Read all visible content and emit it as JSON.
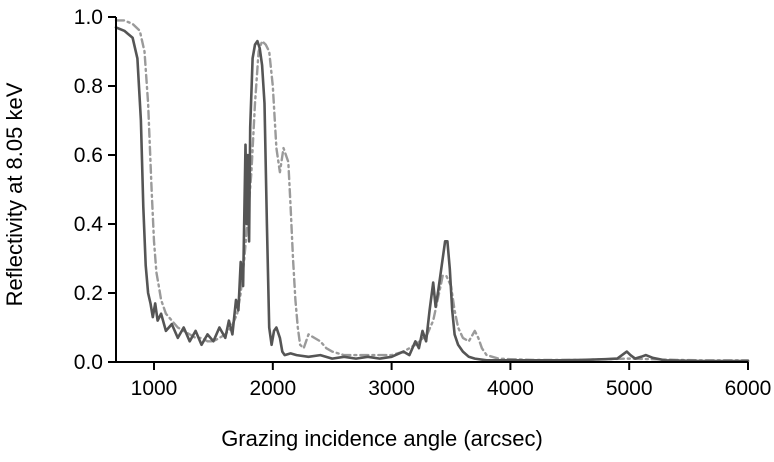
{
  "chart_data": {
    "type": "line",
    "title": "",
    "xlabel": "Grazing incidence angle (arcsec)",
    "ylabel": "Reflectivity at 8.05 keV",
    "xlim": [
      680,
      6000
    ],
    "ylim": [
      0,
      1.0
    ],
    "x_ticks": [
      1000,
      2000,
      3000,
      4000,
      5000,
      6000
    ],
    "x_tick_labels": [
      "1000",
      "2000",
      "3000",
      "4000",
      "5000",
      "6000"
    ],
    "y_ticks": [
      0.0,
      0.2,
      0.4,
      0.6,
      0.8,
      1.0
    ],
    "y_tick_labels": [
      "0.0",
      "0.2",
      "0.4",
      "0.6",
      "0.8",
      "1.0"
    ],
    "grid": false,
    "legend": "none",
    "series": [
      {
        "style": "solid",
        "color": "#555555",
        "x": [
          680,
          750,
          820,
          860,
          890,
          910,
          930,
          950,
          970,
          990,
          1010,
          1030,
          1060,
          1100,
          1150,
          1200,
          1250,
          1300,
          1350,
          1400,
          1450,
          1500,
          1550,
          1600,
          1630,
          1660,
          1690,
          1710,
          1730,
          1750,
          1770,
          1780,
          1790,
          1800,
          1810,
          1830,
          1850,
          1870,
          1890,
          1910,
          1930,
          1950,
          1970,
          1990,
          2010,
          2030,
          2060,
          2080,
          2100,
          2150,
          2200,
          2300,
          2400,
          2500,
          2600,
          2700,
          2800,
          2900,
          3000,
          3100,
          3150,
          3200,
          3230,
          3260,
          3290,
          3320,
          3350,
          3370,
          3390,
          3410,
          3430,
          3450,
          3470,
          3490,
          3510,
          3530,
          3560,
          3600,
          3650,
          3700,
          3800,
          3900,
          4000,
          4200,
          4400,
          4600,
          4800,
          4900,
          4980,
          5010,
          5050,
          5100,
          5140,
          5200,
          5300,
          5400,
          5600,
          5800,
          6000
        ],
        "y": [
          0.97,
          0.96,
          0.94,
          0.88,
          0.7,
          0.45,
          0.28,
          0.2,
          0.17,
          0.13,
          0.17,
          0.12,
          0.14,
          0.09,
          0.11,
          0.07,
          0.1,
          0.06,
          0.09,
          0.05,
          0.08,
          0.06,
          0.1,
          0.07,
          0.12,
          0.08,
          0.18,
          0.15,
          0.29,
          0.22,
          0.63,
          0.4,
          0.6,
          0.35,
          0.68,
          0.88,
          0.92,
          0.93,
          0.91,
          0.86,
          0.75,
          0.4,
          0.1,
          0.05,
          0.09,
          0.1,
          0.07,
          0.03,
          0.02,
          0.025,
          0.02,
          0.015,
          0.02,
          0.01,
          0.015,
          0.01,
          0.015,
          0.01,
          0.015,
          0.03,
          0.02,
          0.06,
          0.04,
          0.09,
          0.06,
          0.15,
          0.23,
          0.16,
          0.2,
          0.25,
          0.3,
          0.35,
          0.35,
          0.27,
          0.15,
          0.08,
          0.05,
          0.03,
          0.015,
          0.01,
          0.005,
          0.005,
          0.005,
          0.005,
          0.005,
          0.006,
          0.008,
          0.01,
          0.03,
          0.02,
          0.01,
          0.015,
          0.02,
          0.012,
          0.005,
          0.004,
          0.003,
          0.003,
          0.003
        ]
      },
      {
        "style": "dash-dot",
        "color": "#9a9a9a",
        "x": [
          680,
          750,
          820,
          880,
          920,
          950,
          980,
          1000,
          1020,
          1040,
          1060,
          1100,
          1150,
          1200,
          1250,
          1300,
          1350,
          1400,
          1450,
          1500,
          1550,
          1600,
          1650,
          1700,
          1730,
          1760,
          1790,
          1820,
          1850,
          1880,
          1910,
          1940,
          1970,
          2000,
          2030,
          2060,
          2090,
          2110,
          2130,
          2150,
          2170,
          2190,
          2210,
          2230,
          2260,
          2300,
          2350,
          2400,
          2450,
          2500,
          2600,
          2700,
          2800,
          2900,
          3000,
          3100,
          3200,
          3300,
          3350,
          3400,
          3430,
          3460,
          3500,
          3530,
          3560,
          3600,
          3650,
          3700,
          3730,
          3760,
          3800,
          3900,
          4000,
          4200,
          4400,
          4600,
          4800,
          5000,
          5200,
          5400,
          5600,
          5800,
          6000
        ],
        "y": [
          0.99,
          0.99,
          0.98,
          0.96,
          0.9,
          0.75,
          0.5,
          0.35,
          0.26,
          0.22,
          0.18,
          0.14,
          0.12,
          0.1,
          0.09,
          0.08,
          0.07,
          0.07,
          0.06,
          0.06,
          0.07,
          0.08,
          0.1,
          0.14,
          0.2,
          0.3,
          0.42,
          0.55,
          0.75,
          0.9,
          0.93,
          0.92,
          0.9,
          0.8,
          0.62,
          0.55,
          0.62,
          0.6,
          0.58,
          0.45,
          0.3,
          0.18,
          0.1,
          0.05,
          0.04,
          0.08,
          0.07,
          0.06,
          0.04,
          0.03,
          0.02,
          0.02,
          0.02,
          0.02,
          0.02,
          0.03,
          0.05,
          0.08,
          0.12,
          0.2,
          0.25,
          0.25,
          0.22,
          0.15,
          0.1,
          0.07,
          0.06,
          0.09,
          0.07,
          0.04,
          0.02,
          0.01,
          0.008,
          0.006,
          0.006,
          0.006,
          0.008,
          0.01,
          0.008,
          0.006,
          0.005,
          0.005,
          0.005
        ]
      }
    ]
  }
}
